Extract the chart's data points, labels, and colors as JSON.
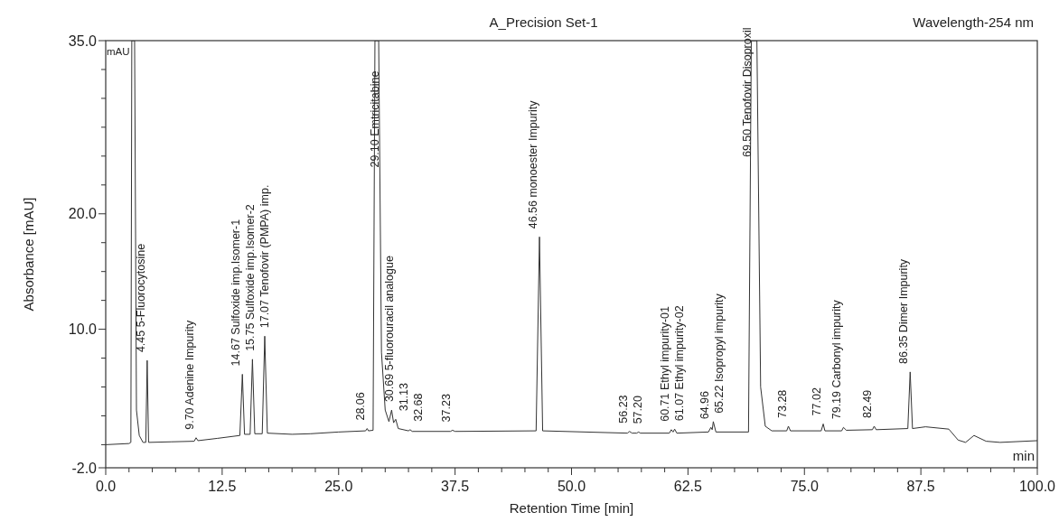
{
  "chart_data": {
    "type": "line",
    "title": "A_Precision Set-1",
    "subtitle": "Wavelength-254 nm",
    "xlabel": "Retention Time [min]",
    "ylabel": "Absorbance [mAU]",
    "xlim": [
      0,
      100
    ],
    "ylim": [
      -2,
      35
    ],
    "xticks": [
      {
        "value": 0,
        "label": "0.0"
      },
      {
        "value": 2.5,
        "label": null
      },
      {
        "value": 5,
        "label": null
      },
      {
        "value": 7.5,
        "label": null
      },
      {
        "value": 10,
        "label": null
      },
      {
        "value": 12.5,
        "label": "12.5"
      },
      {
        "value": 15,
        "label": null
      },
      {
        "value": 17.5,
        "label": null
      },
      {
        "value": 20,
        "label": null
      },
      {
        "value": 22.5,
        "label": null
      },
      {
        "value": 25,
        "label": "25.0"
      },
      {
        "value": 27.5,
        "label": null
      },
      {
        "value": 30,
        "label": null
      },
      {
        "value": 32.5,
        "label": null
      },
      {
        "value": 35,
        "label": null
      },
      {
        "value": 37.5,
        "label": "37.5"
      },
      {
        "value": 40,
        "label": null
      },
      {
        "value": 42.5,
        "label": null
      },
      {
        "value": 45,
        "label": null
      },
      {
        "value": 47.5,
        "label": null
      },
      {
        "value": 50,
        "label": "50.0"
      },
      {
        "value": 52.5,
        "label": null
      },
      {
        "value": 55,
        "label": null
      },
      {
        "value": 57.5,
        "label": null
      },
      {
        "value": 60,
        "label": null
      },
      {
        "value": 62.5,
        "label": "62.5"
      },
      {
        "value": 65,
        "label": null
      },
      {
        "value": 67.5,
        "label": null
      },
      {
        "value": 70,
        "label": null
      },
      {
        "value": 72.5,
        "label": null
      },
      {
        "value": 75,
        "label": "75.0"
      },
      {
        "value": 77.5,
        "label": null
      },
      {
        "value": 80,
        "label": null
      },
      {
        "value": 82.5,
        "label": null
      },
      {
        "value": 85,
        "label": null
      },
      {
        "value": 87.5,
        "label": "87.5"
      },
      {
        "value": 90,
        "label": null
      },
      {
        "value": 92.5,
        "label": null
      },
      {
        "value": 95,
        "label": null
      },
      {
        "value": 97.5,
        "label": null
      },
      {
        "value": 100,
        "label": "100.0"
      }
    ],
    "yticks": [
      {
        "value": -2,
        "label": "-2.0"
      },
      {
        "value": 0,
        "label": null
      },
      {
        "value": 2.5,
        "label": null
      },
      {
        "value": 5,
        "label": null
      },
      {
        "value": 7.5,
        "label": null
      },
      {
        "value": 10,
        "label": "10.0"
      },
      {
        "value": 12.5,
        "label": null
      },
      {
        "value": 15,
        "label": null
      },
      {
        "value": 17.5,
        "label": null
      },
      {
        "value": 20,
        "label": "20.0"
      },
      {
        "value": 22.5,
        "label": null
      },
      {
        "value": 25,
        "label": null
      },
      {
        "value": 27.5,
        "label": null
      },
      {
        "value": 30,
        "label": null
      },
      {
        "value": 32.5,
        "label": null
      },
      {
        "value": 35,
        "label": "35.0"
      }
    ],
    "marker": "none",
    "line_style": "solid",
    "series": [
      {
        "color": "#333333",
        "x": [
          0,
          2.5,
          2.7,
          2.8,
          3.1,
          3.3,
          3.6,
          4.0,
          4.3,
          4.45,
          4.6,
          7,
          9.5,
          9.7,
          9.9,
          12,
          14.4,
          14.67,
          14.9,
          15.5,
          15.75,
          16.0,
          16.8,
          17.07,
          17.35,
          20,
          22,
          25,
          27.9,
          28.06,
          28.2,
          28.7,
          28.9,
          29.3,
          29.6,
          30.0,
          30.4,
          30.69,
          30.9,
          31.13,
          31.4,
          32.5,
          32.68,
          32.9,
          37.0,
          37.23,
          37.5,
          46.2,
          46.56,
          46.9,
          56.0,
          56.23,
          56.5,
          57.0,
          57.2,
          57.4,
          60.5,
          60.71,
          60.9,
          61.07,
          61.3,
          64.7,
          64.96,
          65.1,
          65.22,
          65.5,
          69.0,
          69.3,
          69.9,
          70.3,
          70.8,
          71.5,
          73.1,
          73.28,
          73.5,
          76.8,
          77.02,
          77.2,
          79.0,
          79.19,
          79.5,
          82.3,
          82.49,
          82.7,
          86.1,
          86.35,
          86.6,
          88,
          90.5,
          91.5,
          92.3,
          93.2,
          94.5,
          96,
          100
        ],
        "values": [
          0.0,
          0.1,
          0.2,
          35,
          35,
          3,
          0.8,
          0.2,
          0.2,
          7.3,
          0.2,
          0.25,
          0.3,
          0.6,
          0.35,
          0.55,
          0.8,
          6.1,
          0.9,
          0.9,
          7.4,
          0.95,
          0.95,
          9.4,
          1.0,
          0.9,
          0.95,
          1.1,
          1.2,
          1.4,
          1.2,
          1.25,
          35,
          35,
          8,
          3.0,
          2.0,
          3.0,
          1.9,
          2.2,
          1.4,
          1.2,
          1.3,
          1.15,
          1.15,
          1.25,
          1.15,
          1.2,
          18,
          1.2,
          1.0,
          1.15,
          1.0,
          1.0,
          1.1,
          1.0,
          1.0,
          1.3,
          1.1,
          1.35,
          1.0,
          1.1,
          1.5,
          1.3,
          2.0,
          1.1,
          1.1,
          35,
          35,
          5,
          1.6,
          1.2,
          1.2,
          1.6,
          1.2,
          1.2,
          1.8,
          1.2,
          1.2,
          1.5,
          1.25,
          1.3,
          1.6,
          1.3,
          1.4,
          6.3,
          1.4,
          1.55,
          1.35,
          0.4,
          0.2,
          0.8,
          0.3,
          0.2,
          0.35
        ]
      }
    ],
    "annotations": [
      "mAU",
      "min",
      {
        "text": "4.45 5-Fluorocytosine",
        "x": 4.45,
        "y": 7.3
      },
      {
        "text": "9.70 Adenine Impurity",
        "x": 9.7,
        "y": 0.6
      },
      {
        "text": "14.67 Sulfoxide imp.Isomer-1",
        "x": 14.67,
        "y": 6.1
      },
      {
        "text": "15.75 Sulfoxide imp.Isomer-2",
        "x": 15.75,
        "y": 7.4
      },
      {
        "text": "17.07 Tenofovir (PMPA) imp.",
        "x": 17.07,
        "y": 9.4
      },
      {
        "text": "28.06",
        "x": 28.06,
        "y": 1.4
      },
      {
        "text": "29.10 Emtricitabine",
        "x": 29.1,
        "y": 23.3
      },
      {
        "text": "30.69 5-fluorouracil analogue",
        "x": 30.69,
        "y": 3.0
      },
      {
        "text": "31.13",
        "x": 31.13,
        "y": 2.2
      },
      {
        "text": "32.68",
        "x": 32.68,
        "y": 1.3
      },
      {
        "text": "37.23",
        "x": 37.23,
        "y": 1.25
      },
      {
        "text": "46.56 monoester Impurity",
        "x": 46.56,
        "y": 18
      },
      {
        "text": "56.23",
        "x": 56.23,
        "y": 1.15
      },
      {
        "text": "57.20",
        "x": 57.2,
        "y": 1.1
      },
      {
        "text": "60.71 Ethyl impurity-01",
        "x": 60.71,
        "y": 1.3
      },
      {
        "text": "61.07 Ethyl impurity-02",
        "x": 61.07,
        "y": 1.35
      },
      {
        "text": "64.96",
        "x": 64.96,
        "y": 1.5
      },
      {
        "text": "65.22 Isopropyl impurity",
        "x": 65.22,
        "y": 2.0
      },
      {
        "text": "69.50 Tenofovir Disoproxil",
        "x": 69.5,
        "y": 24.2
      },
      {
        "text": "73.28",
        "x": 73.28,
        "y": 1.6
      },
      {
        "text": "77.02",
        "x": 77.02,
        "y": 1.8
      },
      {
        "text": "79.19 Carbonyl impurity",
        "x": 79.19,
        "y": 1.5
      },
      {
        "text": "82.49",
        "x": 82.49,
        "y": 1.6
      },
      {
        "text": "86.35 Dimer Impurity",
        "x": 86.35,
        "y": 6.3
      }
    ]
  }
}
